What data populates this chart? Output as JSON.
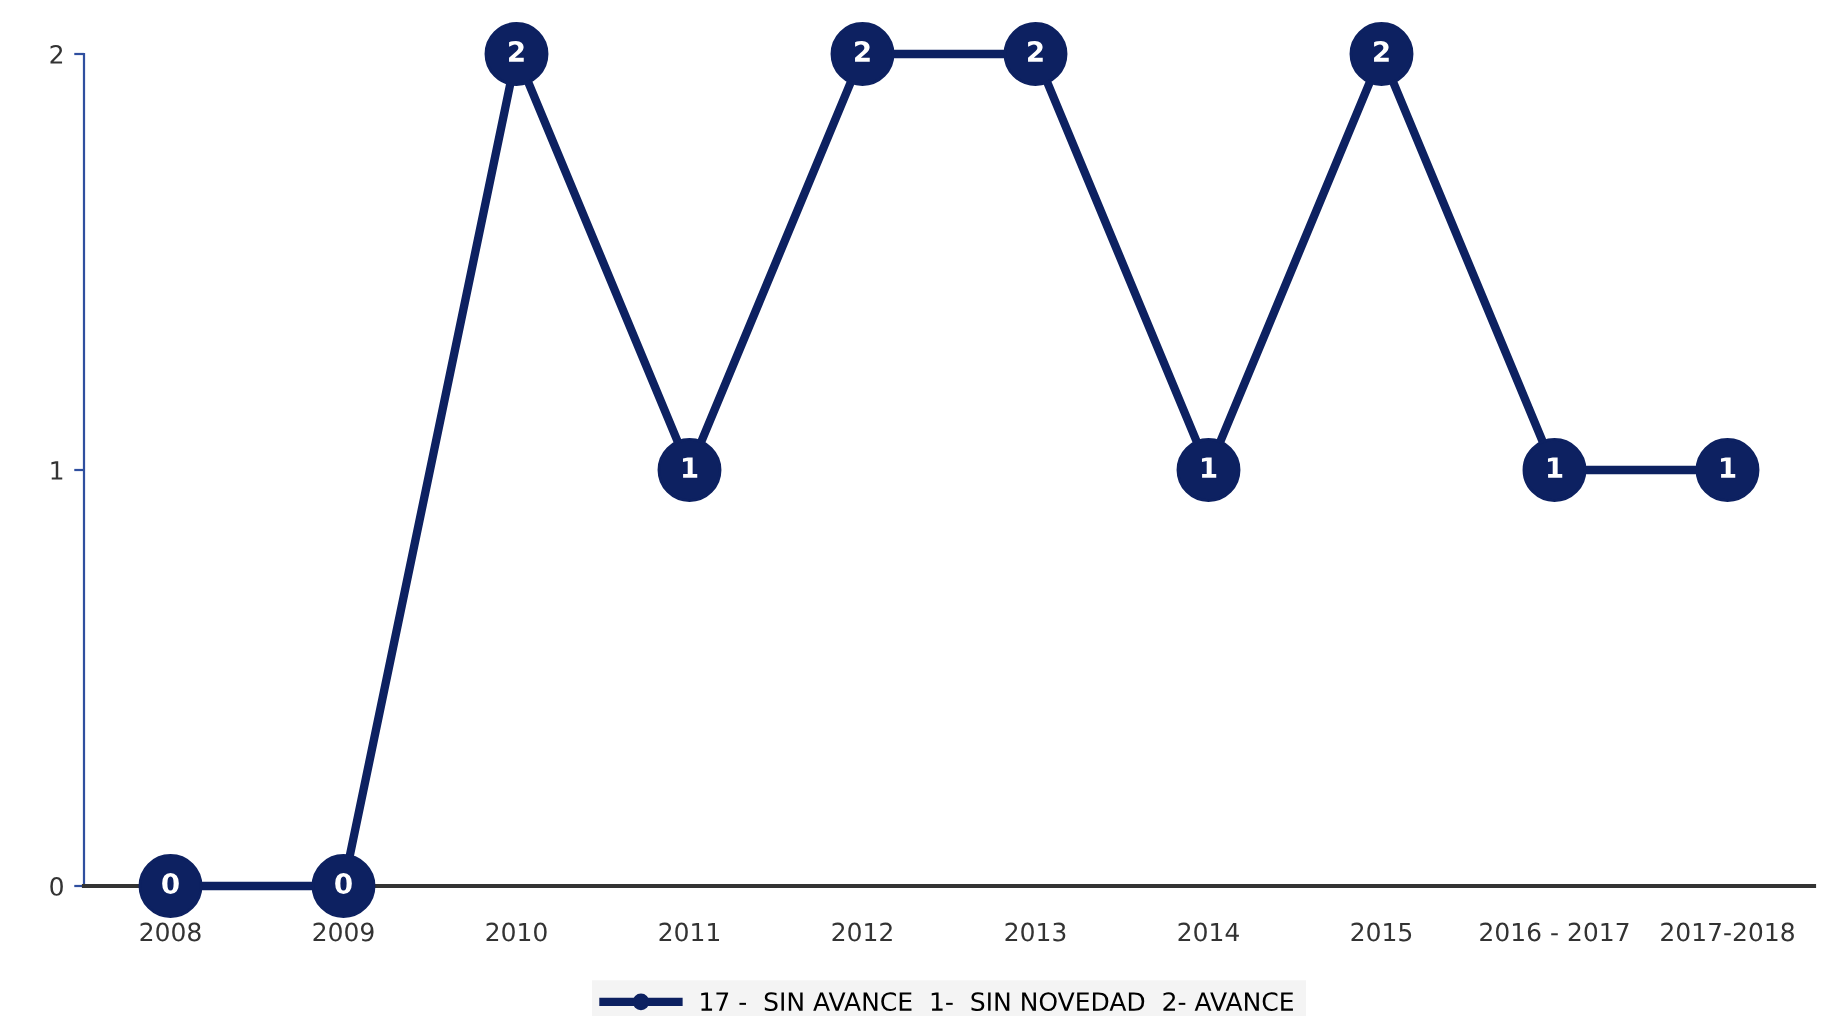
{
  "chart_data": {
    "type": "line",
    "categories": [
      "2008",
      "2009",
      "2010",
      "2011",
      "2012",
      "2013",
      "2014",
      "2015",
      "2016 - 2017",
      "2017-2018"
    ],
    "series": [
      {
        "name": "17 -  SIN AVANCE  1-  SIN NOVEDAD  2- AVANCE",
        "color": "#0d2161",
        "values": [
          0,
          0,
          2,
          1,
          2,
          2,
          1,
          2,
          1,
          1
        ]
      }
    ],
    "ylim": [
      0,
      2
    ],
    "yticks": [
      0,
      1,
      2
    ],
    "grid": false,
    "legend": "bottom",
    "marker": "circle",
    "line_style": "solid",
    "data_labels": true
  }
}
